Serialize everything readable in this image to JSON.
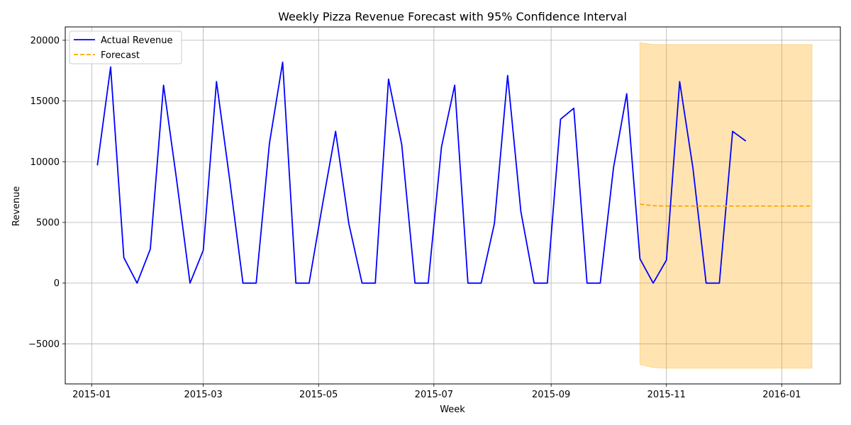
{
  "chart_data": {
    "type": "line",
    "title": "Weekly Pizza Revenue Forecast with 95% Confidence Interval",
    "xlabel": "Week",
    "ylabel": "Revenue",
    "grid": true,
    "legend_position": "top-left",
    "xlim": [
      "2014-12-18",
      "2016-02-01"
    ],
    "ylim": [
      -8300,
      21100
    ],
    "x_ticks": [
      {
        "date": "2015-01-01",
        "label": "2015-01"
      },
      {
        "date": "2015-03-01",
        "label": "2015-03"
      },
      {
        "date": "2015-05-01",
        "label": "2015-05"
      },
      {
        "date": "2015-07-01",
        "label": "2015-07"
      },
      {
        "date": "2015-09-01",
        "label": "2015-09"
      },
      {
        "date": "2015-11-01",
        "label": "2015-11"
      },
      {
        "date": "2016-01-01",
        "label": "2016-01"
      }
    ],
    "y_ticks": [
      {
        "value": -5000,
        "label": "−5000"
      },
      {
        "value": 0,
        "label": "0"
      },
      {
        "value": 5000,
        "label": "5000"
      },
      {
        "value": 10000,
        "label": "10000"
      },
      {
        "value": 15000,
        "label": "15000"
      },
      {
        "value": 20000,
        "label": "20000"
      }
    ],
    "series": [
      {
        "name": "Actual Revenue",
        "color": "#0000ff",
        "style": "solid",
        "start": "2015-01-04",
        "step_days": 7,
        "values": [
          9700,
          17800,
          2100,
          0,
          2800,
          16300,
          8400,
          0,
          2700,
          16600,
          8500,
          0,
          0,
          11500,
          18200,
          0,
          0,
          6400,
          12500,
          4900,
          0,
          0,
          16800,
          11400,
          0,
          0,
          11200,
          16300,
          0,
          0,
          4900,
          17100,
          5900,
          0,
          0,
          13500,
          14400,
          0,
          0,
          9500,
          15600,
          2000,
          0,
          1900,
          16600,
          9500,
          0,
          0,
          12500,
          11700
        ]
      },
      {
        "name": "Forecast",
        "color": "#ffa500",
        "style": "dashed",
        "start": "2015-10-18",
        "step_days": 7,
        "values": [
          6500,
          6380,
          6350,
          6350,
          6350,
          6350,
          6350,
          6350,
          6350,
          6350,
          6350,
          6350,
          6350,
          6350
        ],
        "ci_lower": [
          -6700,
          -6950,
          -7000,
          -7000,
          -7000,
          -7000,
          -7000,
          -7000,
          -7000,
          -7000,
          -7000,
          -7000,
          -7000,
          -7000
        ],
        "ci_upper": [
          19800,
          19650,
          19650,
          19650,
          19650,
          19650,
          19650,
          19650,
          19650,
          19650,
          19650,
          19650,
          19650,
          19650
        ],
        "ci_color": "#ffa500"
      }
    ]
  }
}
